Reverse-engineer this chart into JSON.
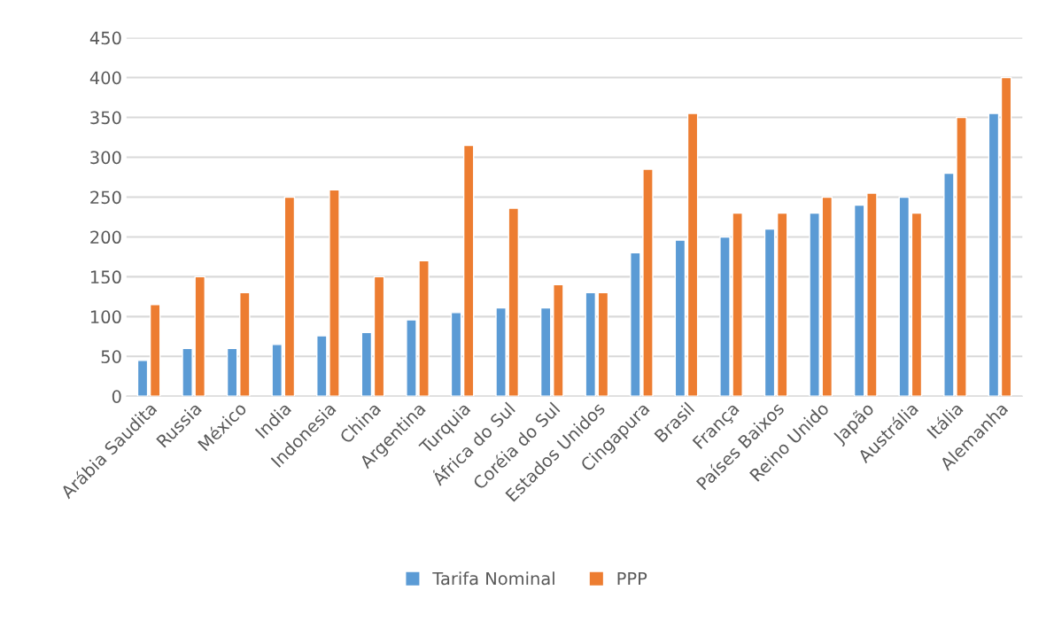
{
  "chart_data": {
    "type": "bar",
    "categories": [
      "Arábia Saudita",
      "Russia",
      "México",
      "India",
      "Indonesia",
      "China",
      "Argentina",
      "Turquia",
      "África do Sul",
      "Coréia do Sul",
      "Estados Unidos",
      "Cingapura",
      "Brasil",
      "França",
      "Países Baixos",
      "Reino Unido",
      "Japão",
      "Austrália",
      "Itália",
      "Alemanha"
    ],
    "series": [
      {
        "name": "Tarifa Nominal",
        "color": "#5b9bd5",
        "values": [
          45,
          60,
          60,
          65,
          76,
          80,
          96,
          105,
          111,
          111,
          130,
          180,
          196,
          200,
          210,
          230,
          240,
          250,
          280,
          355
        ]
      },
      {
        "name": "PPP",
        "color": "#ed7d31",
        "values": [
          115,
          150,
          130,
          250,
          259,
          150,
          170,
          315,
          236,
          140,
          130,
          285,
          355,
          230,
          230,
          250,
          255,
          230,
          350,
          400
        ]
      }
    ],
    "ylim": [
      0,
      450
    ],
    "yticks": [
      0,
      50,
      100,
      150,
      200,
      250,
      300,
      350,
      400,
      450
    ],
    "grid": "y",
    "legend": "bottom"
  }
}
